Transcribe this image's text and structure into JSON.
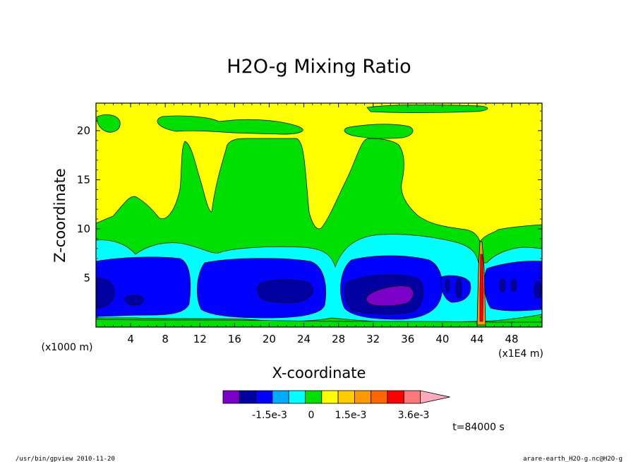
{
  "chart_data": {
    "type": "heatmap",
    "title": "H2O-g Mixing Ratio",
    "xlabel": "X-coordinate",
    "ylabel": "Z-coordinate",
    "x_unit_note": "(x1E4 m)",
    "z_unit_note": "(x1000 m)",
    "xlim": [
      0,
      51.5
    ],
    "ylim": [
      0,
      22.8
    ],
    "x_ticks": [
      "4",
      "8",
      "12",
      "16",
      "20",
      "24",
      "28",
      "32",
      "36",
      "40",
      "44",
      "48"
    ],
    "y_ticks": [
      "5",
      "10",
      "15",
      "20"
    ],
    "colorbar": {
      "colors": [
        "#7a00c8",
        "#0000a0",
        "#0000ff",
        "#00aaff",
        "#00ffff",
        "#00e000",
        "#ffff00",
        "#ffcc00",
        "#ff9900",
        "#ff6600",
        "#ff0000",
        "#ff7777",
        "#ffaabb"
      ],
      "labels": [
        "-1.5e-3",
        "0",
        "1.5e-3",
        "3.6e-3"
      ]
    },
    "time_label": "t=84000 s",
    "grid": false,
    "legend": "colorbar-bottom"
  },
  "footer": {
    "left": "/usr/bin/gpview  2010-11-20",
    "right": "arare-earth_H2O-g.nc@H2O-g"
  }
}
